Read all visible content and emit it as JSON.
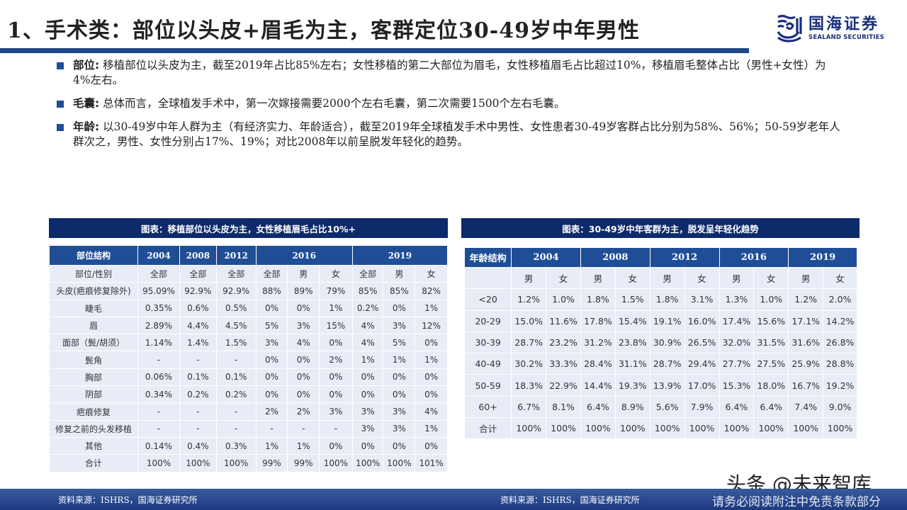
{
  "header": {
    "title": "1、手术类：部位以头皮+眉毛为主，客群定位30-49岁中年男性",
    "logo_cn": "国海证券",
    "logo_en": "SEALAND SECURITIES",
    "accent_color": "#1c4585"
  },
  "bullets": [
    {
      "key": "部位:",
      "text": " 移植部位以头皮为主，截至2019年占比85%左右；女性移植的第二大部位为眉毛，女性移植眉毛占比超过10%，移植眉毛整体占比（男性+女性）为4%左右。"
    },
    {
      "key": "毛囊:",
      "text": " 总体而言，全球植发手术中，第一次嫁接需要2000个左右毛囊，第二次需要1500个左右毛囊。"
    },
    {
      "key": "年龄:",
      "text": " 以30-49岁中年人群为主（有经济实力、年龄适合），截至2019年全球植发手术中男性、女性患者30-49岁客群占比分别为58%、56%；50-59岁老年人群次之，男性、女性分别占17%、19%；对比2008年以前呈脱发年轻化的趋势。"
    }
  ],
  "table1": {
    "caption": "图表：移植部位以头皮为主，女性移植眉毛占比10%+",
    "header": [
      "部位结构",
      "2004",
      "2008",
      "2012",
      "2016",
      "2019"
    ],
    "subheader": [
      "部位/性别",
      "全部",
      "全部",
      "全部",
      "全部",
      "男",
      "女",
      "全部",
      "男",
      "女"
    ],
    "rows": [
      [
        "头皮(疤痕修复除外)",
        "95.09%",
        "92.9%",
        "92.9%",
        "88%",
        "89%",
        "79%",
        "85%",
        "85%",
        "82%"
      ],
      [
        "睫毛",
        "0.35%",
        "0.6%",
        "0.5%",
        "0%",
        "0%",
        "1%",
        "0.2%",
        "0%",
        "1%"
      ],
      [
        "眉",
        "2.89%",
        "4.4%",
        "4.5%",
        "5%",
        "3%",
        "15%",
        "4%",
        "3%",
        "12%"
      ],
      [
        "面部（鬓/胡须）",
        "1.14%",
        "1.4%",
        "1.5%",
        "3%",
        "4%",
        "0%",
        "4%",
        "5%",
        "0%"
      ],
      [
        "鬓角",
        "-",
        "-",
        "-",
        "0%",
        "0%",
        "2%",
        "1%",
        "1%",
        "1%"
      ],
      [
        "胸部",
        "0.06%",
        "0.1%",
        "0.1%",
        "0%",
        "0%",
        "0%",
        "0%",
        "0%",
        "0%"
      ],
      [
        "阴部",
        "0.34%",
        "0.2%",
        "0.2%",
        "0%",
        "0%",
        "0%",
        "0%",
        "0%",
        "0%"
      ],
      [
        "疤痕修复",
        "-",
        "-",
        "-",
        "2%",
        "2%",
        "3%",
        "3%",
        "3%",
        "4%"
      ],
      [
        "修复之前的头发移植",
        "-",
        "-",
        "-",
        "-",
        "-",
        "-",
        "3%",
        "3%",
        "1%"
      ],
      [
        "其他",
        "0.14%",
        "0.4%",
        "0.3%",
        "1%",
        "1%",
        "0%",
        "0%",
        "0%",
        "0%"
      ],
      [
        "合计",
        "100%",
        "100%",
        "100%",
        "99%",
        "99%",
        "100%",
        "100%",
        "100%",
        "101%"
      ]
    ],
    "source": "资料来源：ISHRS，国海证券研究所"
  },
  "table2": {
    "caption": "图表：30-49岁中年客群为主，脱发呈年轻化趋势",
    "header": [
      "年龄结构",
      "2004",
      "2008",
      "2012",
      "2016",
      "2019"
    ],
    "subheader": [
      "",
      "男",
      "女",
      "男",
      "女",
      "男",
      "女",
      "男",
      "女",
      "男",
      "女"
    ],
    "rows": [
      [
        "<20",
        "1.2%",
        "1.0%",
        "1.8%",
        "1.5%",
        "1.8%",
        "3.1%",
        "1.3%",
        "1.0%",
        "1.2%",
        "2.0%"
      ],
      [
        "20-29",
        "15.0%",
        "11.6%",
        "17.8%",
        "15.4%",
        "19.1%",
        "16.0%",
        "17.4%",
        "15.6%",
        "17.1%",
        "14.2%"
      ],
      [
        "30-39",
        "28.7%",
        "23.2%",
        "31.2%",
        "23.8%",
        "30.9%",
        "26.5%",
        "32.0%",
        "31.5%",
        "31.6%",
        "26.8%"
      ],
      [
        "40-49",
        "30.2%",
        "33.3%",
        "28.4%",
        "31.1%",
        "28.7%",
        "29.4%",
        "27.7%",
        "27.5%",
        "25.9%",
        "28.8%"
      ],
      [
        "50-59",
        "18.3%",
        "22.9%",
        "14.4%",
        "19.3%",
        "13.9%",
        "17.0%",
        "15.3%",
        "18.0%",
        "16.7%",
        "19.2%"
      ],
      [
        "60+",
        "6.7%",
        "8.1%",
        "6.4%",
        "8.9%",
        "5.6%",
        "7.9%",
        "6.4%",
        "6.4%",
        "7.4%",
        "9.0%"
      ],
      [
        "合计",
        "100%",
        "100%",
        "100%",
        "100%",
        "100%",
        "100%",
        "100%",
        "100%",
        "100%",
        "100%"
      ]
    ],
    "source": "资料来源：ISHRS，国海证券研究所"
  },
  "footer": {
    "disclaimer": "请务必阅读附注中免责条款部分",
    "watermark": "头条 @未来智库"
  }
}
